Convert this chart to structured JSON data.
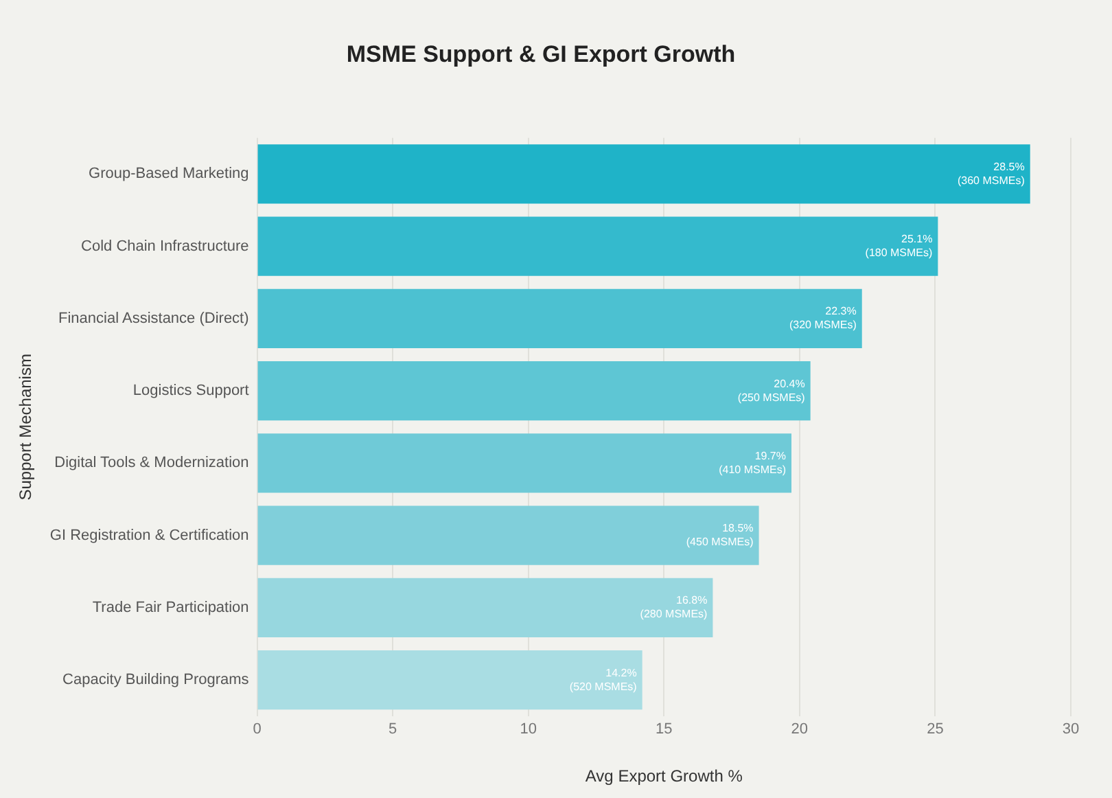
{
  "chart_data": {
    "type": "bar",
    "orientation": "horizontal",
    "title": "MSME Support & GI Export Growth",
    "xlabel": "Avg Export Growth %",
    "ylabel": "Support Mechanism",
    "categories": [
      "Group-Based Marketing",
      "Cold Chain Infrastructure",
      "Financial Assistance (Direct)",
      "Logistics Support",
      "Digital Tools & Modernization",
      "GI Registration & Certification",
      "Trade Fair Participation",
      "Capacity Building Programs"
    ],
    "values": [
      28.5,
      25.1,
      22.3,
      20.4,
      19.7,
      18.5,
      16.8,
      14.2
    ],
    "colors": [
      "#1fb3c8",
      "#34bacd",
      "#4cc1d1",
      "#5ec6d4",
      "#6fcad7",
      "#80cfda",
      "#97d7df",
      "#a9dde3"
    ],
    "value_labels": [
      "28.5%\n(360 MSMEs)",
      "25.1%\n(180 MSMEs)",
      "22.3%\n(320 MSMEs)",
      "20.4%\n(250 MSMEs)",
      "19.7%\n(410 MSMEs)",
      "18.5%\n(450 MSMEs)",
      "16.8%\n(280 MSMEs)",
      "14.2%\n(520 MSMEs)"
    ],
    "xlim": [
      0,
      30
    ],
    "xticks": [
      0,
      5,
      10,
      15,
      20,
      25,
      30
    ],
    "grid": "x",
    "legend": false
  }
}
